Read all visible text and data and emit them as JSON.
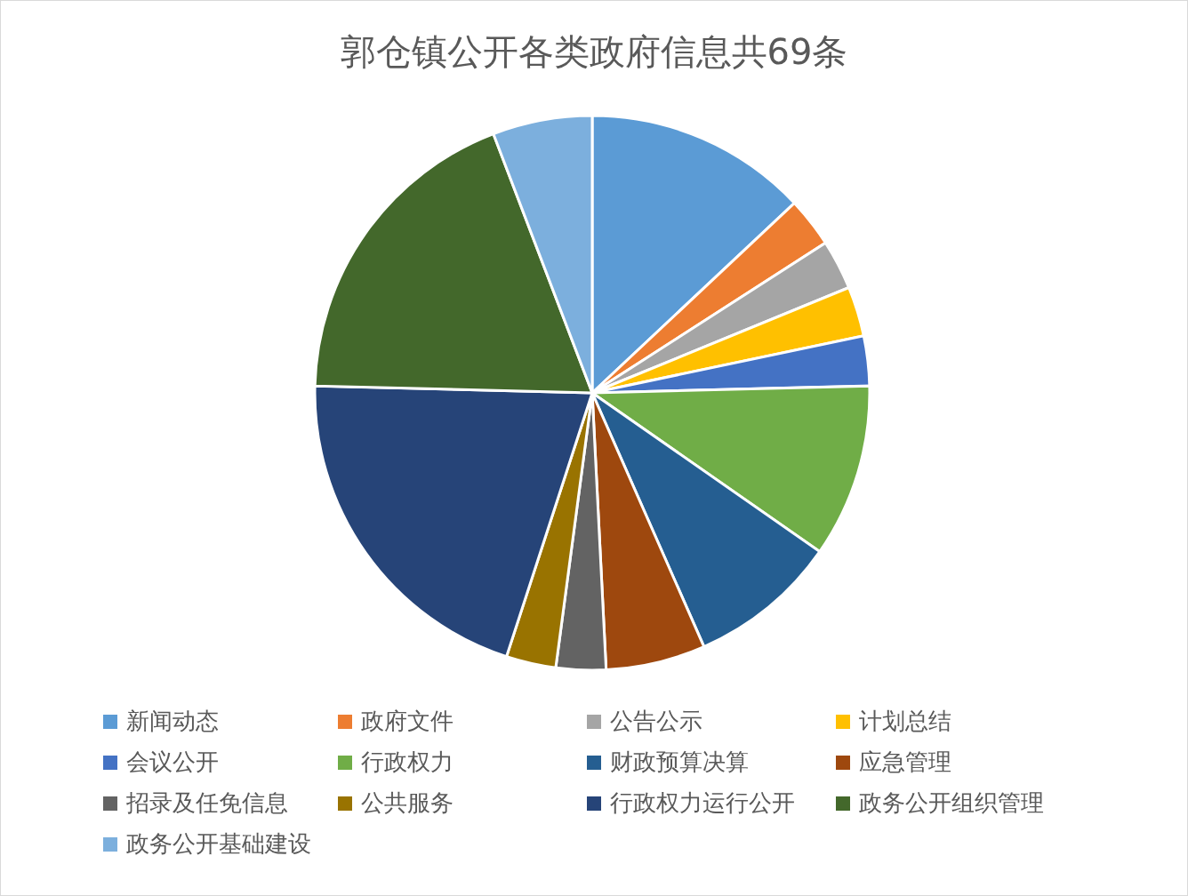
{
  "chart_data": {
    "type": "pie",
    "title": "郭仓镇公开各类政府信息共69条",
    "categories": [
      "新闻动态",
      "政府文件",
      "公告公示",
      "计划总结",
      "会议公开",
      "行政权力",
      "财政预算决算",
      "应急管理",
      "招录及任免信息",
      "公共服务",
      "行政权力运行公开",
      "政务公开组织管理",
      "政务公开基础建设"
    ],
    "values": [
      13.0,
      2.9,
      2.9,
      2.9,
      2.9,
      10.1,
      8.7,
      5.8,
      2.9,
      2.9,
      20.4,
      18.8,
      5.8
    ],
    "colors": [
      "#5b9bd5",
      "#ed7d31",
      "#a5a5a5",
      "#ffc000",
      "#4472c4",
      "#70ad47",
      "#255e91",
      "#9e480e",
      "#636363",
      "#997300",
      "#264478",
      "#43682b",
      "#7cafdd"
    ],
    "legend": "bottom"
  }
}
